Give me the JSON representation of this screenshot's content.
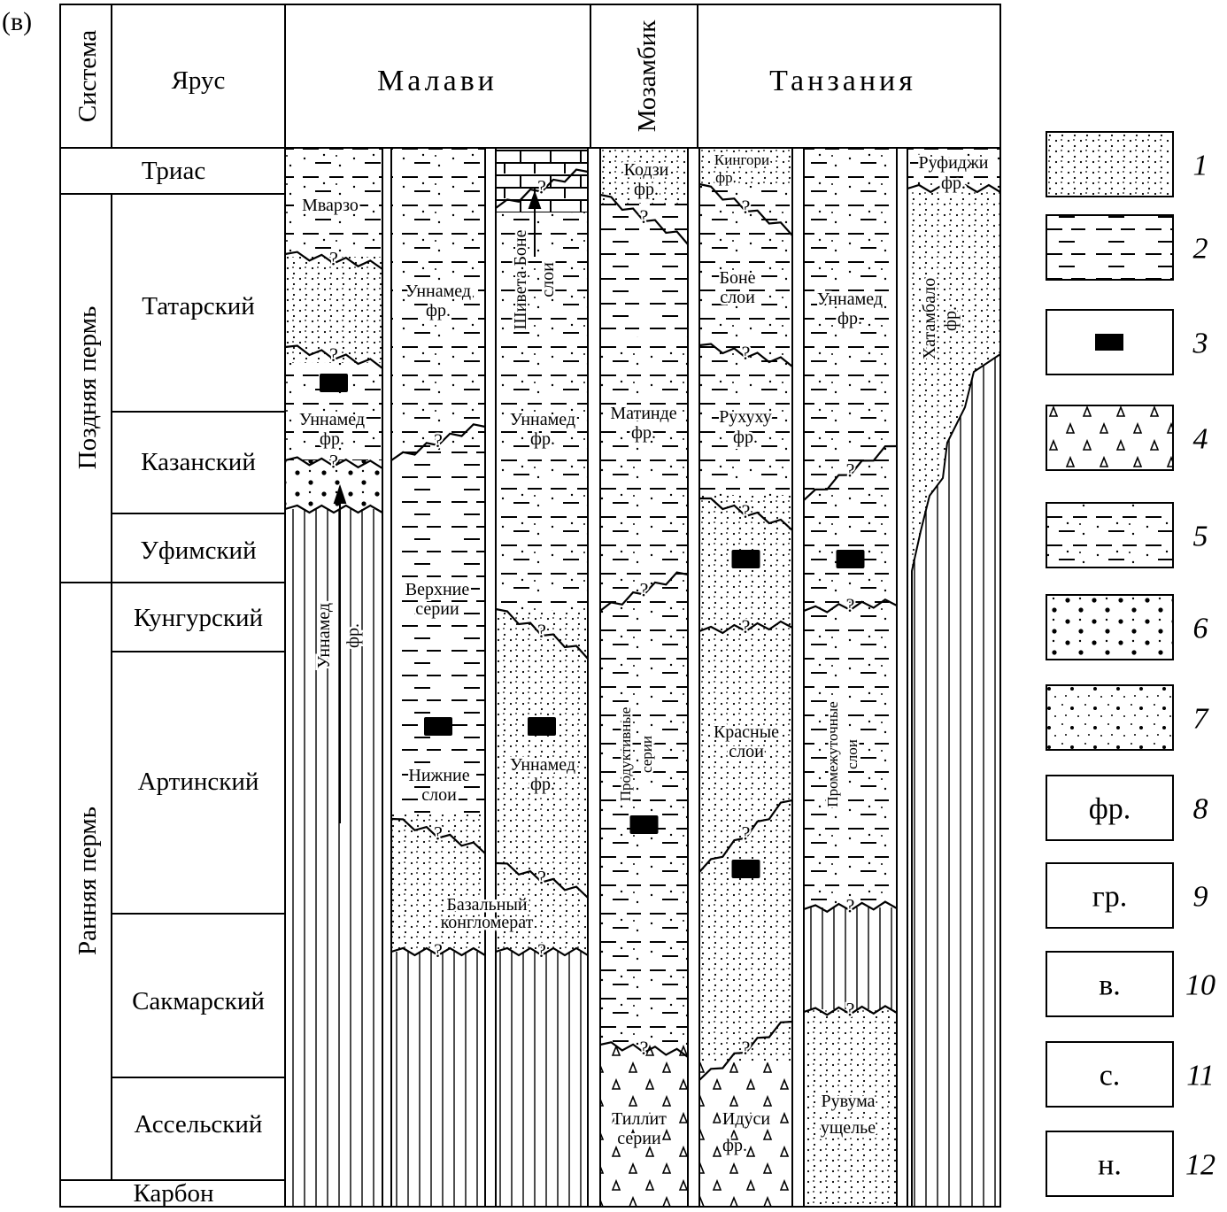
{
  "panel_label": "(в)",
  "header": {
    "system": "Система",
    "stage": "Ярус",
    "malawi": "Малави",
    "mozambique": "Мозамбик",
    "tanzania": "Танзания"
  },
  "systems": {
    "late_permian": "Поздняя пермь",
    "early_permian": "Ранняя пермь"
  },
  "stages": {
    "triassic": "Триас",
    "tatarian": "Татарский",
    "kazanian": "Казанский",
    "ufimian": "Уфимский",
    "kungurian": "Кунгурский",
    "artinskian": "Артинский",
    "sakmarian": "Сакмарский",
    "asselian": "Ассельский",
    "carboniferous": "Карбон"
  },
  "unit_labels": {
    "mvarzo": "Мварзо",
    "unnamed_1": "Уннамед",
    "fr": "фр.",
    "unnamed_vertical": "Уннамед",
    "upper_series_1": "Верхние",
    "upper_series_2": "серии",
    "lower_beds_1": "Нижние",
    "lower_beds_2": "слои",
    "basal_1": "Базальный",
    "basal_2": "конгломерат",
    "shiveta_1": "Шивета Боне",
    "shiveta_2": "слои",
    "kodzi": "Кодзи",
    "matinde": "Матинде",
    "productive_1": "Продуктивные",
    "productive_2": "серии",
    "tillite_1": "Тиллит",
    "tillite_2": "серии",
    "kingori": "Кингори",
    "bone_1": "Боне",
    "bone_2": "слои",
    "ruhuhu": "Рухуху",
    "red_1": "Красные",
    "red_2": "слои",
    "idusi": "Идуси",
    "intermediate_1": "Промежуточные",
    "intermediate_2": "слои",
    "ruvuma_1": "Рувума",
    "ruvuma_2": "ущелье",
    "rufiji": "Руфиджи",
    "hatambalo": "Хатамбало",
    "q": "?"
  },
  "legend": [
    {
      "num": "1",
      "pattern": "fine-dots"
    },
    {
      "num": "2",
      "pattern": "dashes"
    },
    {
      "num": "3",
      "pattern": "coal-block"
    },
    {
      "num": "4",
      "pattern": "triangles"
    },
    {
      "num": "5",
      "pattern": "dashes-dots"
    },
    {
      "num": "6",
      "pattern": "large-dots"
    },
    {
      "num": "7",
      "pattern": "dots-with-pebbles"
    },
    {
      "num": "8",
      "text": "фр."
    },
    {
      "num": "9",
      "text": "гр."
    },
    {
      "num": "10",
      "text": "в."
    },
    {
      "num": "11",
      "text": "с."
    },
    {
      "num": "12",
      "text": "н."
    }
  ],
  "colors": {
    "ink": "#000000",
    "paper": "#ffffff"
  }
}
